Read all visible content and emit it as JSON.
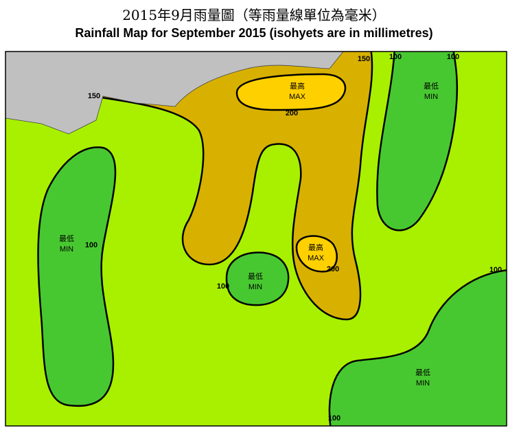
{
  "header": {
    "title_zh": "2015年9月雨量圖（等雨量線單位為毫米）",
    "title_en": "Rainfall Map for September 2015 (isohyets are in millimetres)"
  },
  "map": {
    "zones": [
      {
        "label_zh": "最高",
        "label_en": "MAX"
      },
      {
        "label_zh": "最高",
        "label_en": "MAX"
      },
      {
        "label_zh": "最低",
        "label_en": "MIN"
      },
      {
        "label_zh": "最低",
        "label_en": "MIN"
      },
      {
        "label_zh": "最低",
        "label_en": "MIN"
      },
      {
        "label_zh": "最低",
        "label_en": "MIN"
      }
    ],
    "isohyet_labels": [
      150,
      150,
      100,
      100,
      200,
      100,
      100,
      200,
      100,
      100
    ]
  }
}
